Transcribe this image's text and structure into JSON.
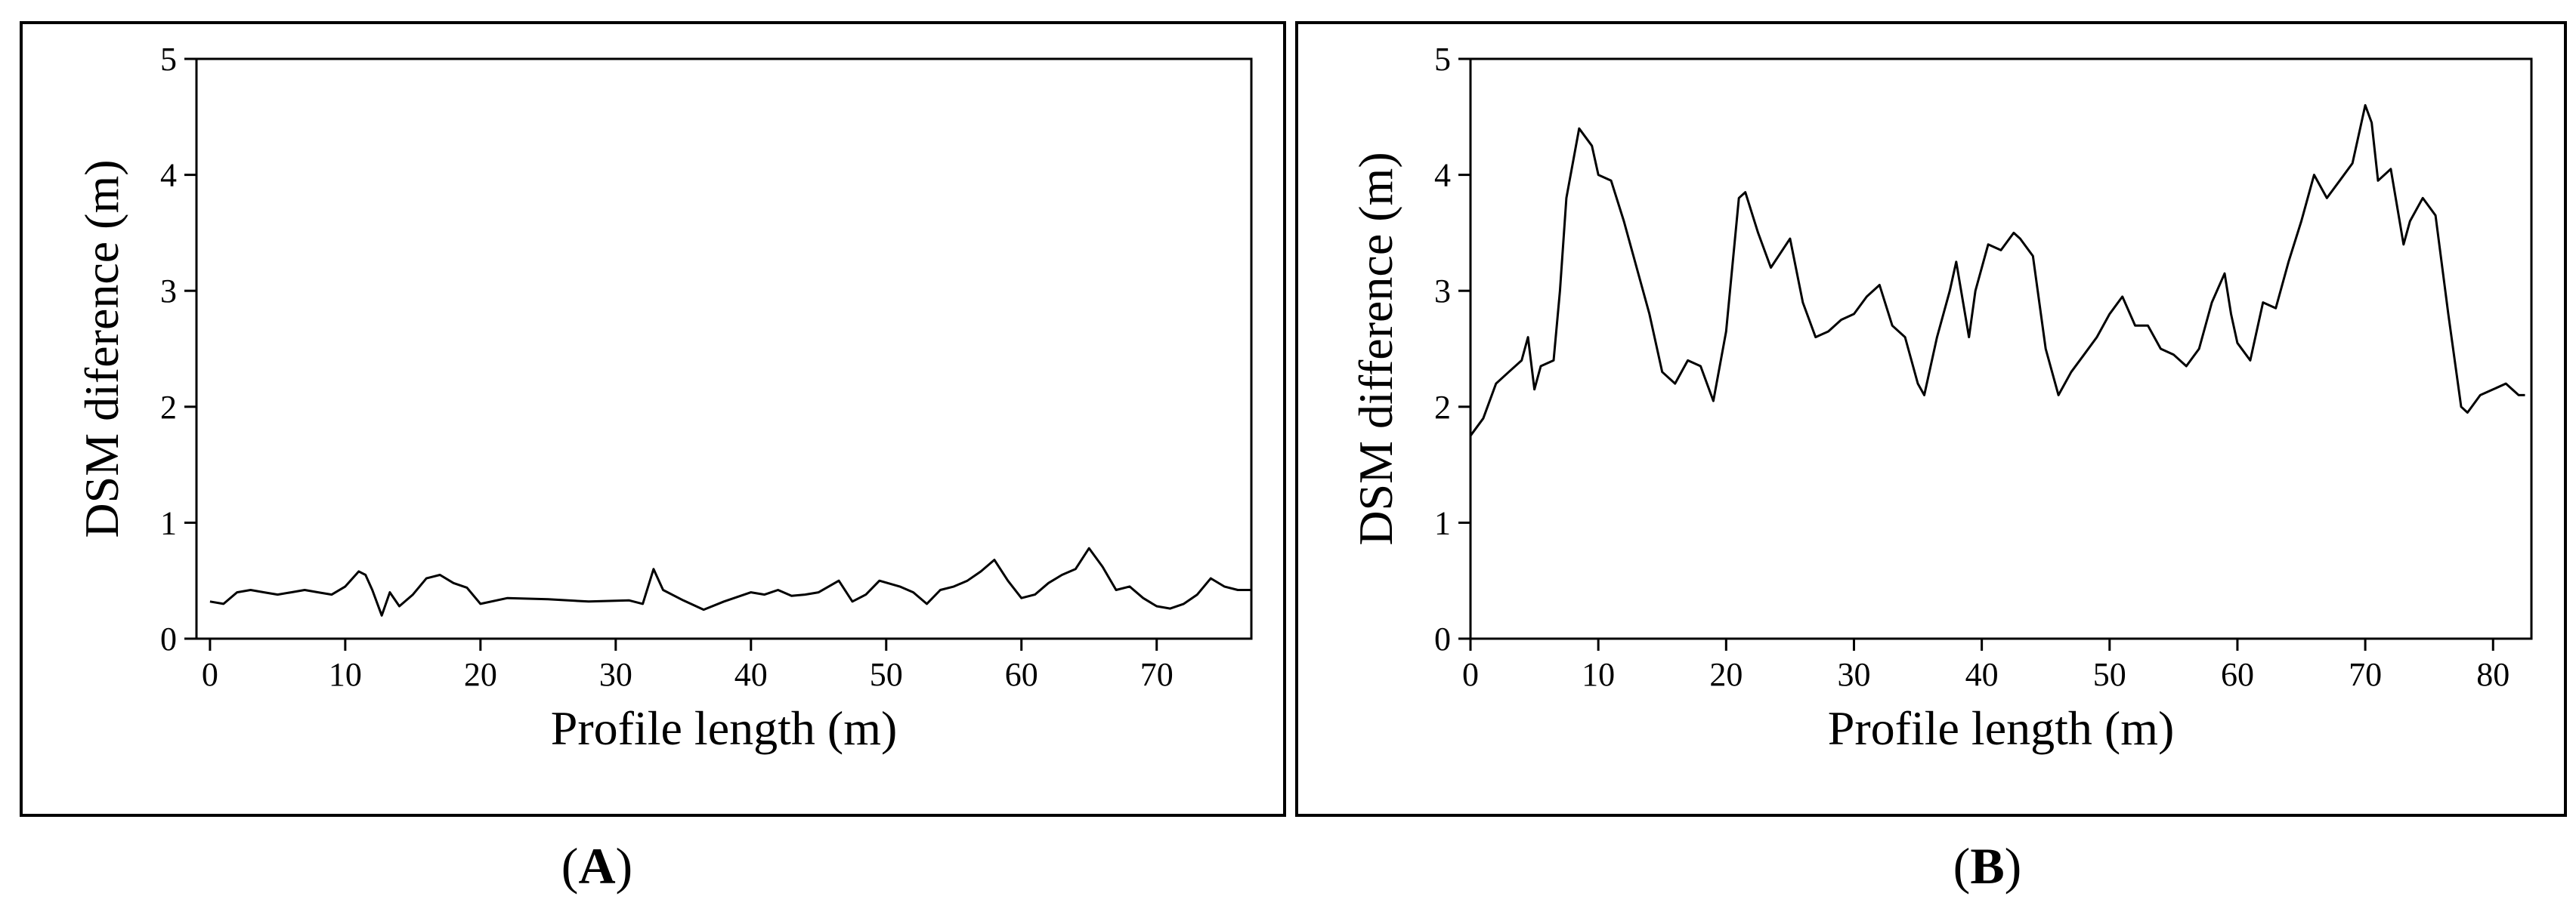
{
  "chart_data": [
    {
      "type": "line",
      "panel_label": "A",
      "xlabel": "Profile length (m)",
      "ylabel": "DSM diference (m)",
      "xlim": [
        -1,
        77
      ],
      "ylim": [
        0,
        5
      ],
      "xticks": [
        0,
        10,
        20,
        30,
        40,
        50,
        60,
        70
      ],
      "yticks": [
        0,
        1,
        2,
        3,
        4,
        5
      ],
      "grid": false,
      "series": [
        {
          "x": [
            0,
            1,
            2,
            3,
            4,
            5,
            6,
            7,
            8,
            9,
            10,
            11,
            11.5,
            12,
            12.7,
            13.3,
            14,
            15,
            16,
            17,
            18,
            19,
            20,
            22,
            25,
            28,
            31,
            32,
            32.8,
            33.5,
            35,
            36.5,
            38,
            40,
            41,
            42,
            43,
            44,
            45,
            46.5,
            47.5,
            48.5,
            49.5,
            51,
            52,
            53,
            54,
            55,
            56,
            57,
            58,
            59,
            60,
            61,
            62,
            63,
            64,
            65,
            66,
            67,
            68,
            69,
            70,
            71,
            72,
            73,
            74,
            75,
            76,
            77
          ],
          "y": [
            0.32,
            0.3,
            0.4,
            0.42,
            0.4,
            0.38,
            0.4,
            0.42,
            0.4,
            0.38,
            0.45,
            0.58,
            0.55,
            0.42,
            0.2,
            0.4,
            0.28,
            0.38,
            0.52,
            0.55,
            0.48,
            0.44,
            0.3,
            0.35,
            0.34,
            0.32,
            0.33,
            0.3,
            0.6,
            0.42,
            0.33,
            0.25,
            0.32,
            0.4,
            0.38,
            0.42,
            0.37,
            0.38,
            0.4,
            0.5,
            0.32,
            0.38,
            0.5,
            0.45,
            0.4,
            0.3,
            0.42,
            0.45,
            0.5,
            0.58,
            0.68,
            0.5,
            0.35,
            0.38,
            0.48,
            0.55,
            0.6,
            0.78,
            0.62,
            0.42,
            0.45,
            0.35,
            0.28,
            0.26,
            0.3,
            0.38,
            0.52,
            0.45,
            0.42,
            0.42
          ]
        }
      ]
    },
    {
      "type": "line",
      "panel_label": "B",
      "xlabel": "Profile length (m)",
      "ylabel": "DSM difference (m)",
      "xlim": [
        0,
        83
      ],
      "ylim": [
        0,
        5
      ],
      "xticks": [
        0,
        10,
        20,
        30,
        40,
        50,
        60,
        70,
        80
      ],
      "yticks": [
        0,
        1,
        2,
        3,
        4,
        5
      ],
      "grid": false,
      "series": [
        {
          "x": [
            0,
            1,
            2,
            3,
            4,
            4.5,
            5,
            5.5,
            6.5,
            7,
            7.5,
            8.5,
            9.5,
            10,
            11,
            12,
            13,
            14,
            15,
            16,
            17,
            18,
            19,
            20,
            21,
            21.5,
            22.5,
            23.5,
            25,
            26,
            27,
            28,
            29,
            30,
            31,
            32,
            33,
            34,
            35,
            35.5,
            36.5,
            37.5,
            38,
            39,
            39.5,
            40.5,
            41.5,
            42.5,
            43,
            44,
            45,
            46,
            47,
            48,
            49,
            50,
            51,
            52,
            53,
            54,
            55,
            56,
            57,
            58,
            59,
            59.5,
            60,
            61,
            62,
            63,
            64,
            65,
            66,
            67,
            68,
            69,
            70,
            70.5,
            71,
            72,
            73,
            73.5,
            74.5,
            75.5,
            76.5,
            77.5,
            78,
            79,
            80,
            81,
            82,
            82.5
          ],
          "y": [
            1.75,
            1.9,
            2.2,
            2.3,
            2.4,
            2.6,
            2.15,
            2.35,
            2.4,
            3.0,
            3.8,
            4.4,
            4.25,
            4.0,
            3.95,
            3.6,
            3.2,
            2.8,
            2.3,
            2.2,
            2.4,
            2.35,
            2.05,
            2.65,
            3.8,
            3.85,
            3.5,
            3.2,
            3.45,
            2.9,
            2.6,
            2.65,
            2.75,
            2.8,
            2.95,
            3.05,
            2.7,
            2.6,
            2.2,
            2.1,
            2.6,
            3.0,
            3.25,
            2.6,
            3.0,
            3.4,
            3.35,
            3.5,
            3.45,
            3.3,
            2.5,
            2.1,
            2.3,
            2.45,
            2.6,
            2.8,
            2.95,
            2.7,
            2.7,
            2.5,
            2.45,
            2.35,
            2.5,
            2.9,
            3.15,
            2.8,
            2.55,
            2.4,
            2.9,
            2.85,
            3.25,
            3.6,
            4.0,
            3.8,
            3.95,
            4.1,
            4.6,
            4.45,
            3.95,
            4.05,
            3.4,
            3.6,
            3.8,
            3.65,
            2.8,
            2.0,
            1.95,
            2.1,
            2.15,
            2.2,
            2.1,
            2.1
          ]
        }
      ]
    }
  ]
}
